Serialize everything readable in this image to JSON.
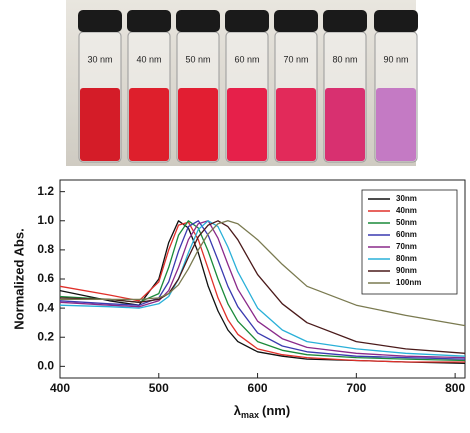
{
  "photo": {
    "labels": [
      "30 nm",
      "40 nm",
      "50 nm",
      "60 nm",
      "70 nm",
      "80 nm",
      "90 nm"
    ]
  },
  "chart_data": {
    "type": "line",
    "y_label": "Normalized Abs.",
    "x_label": {
      "symbol": "λ",
      "subscript": "max",
      "unit": "(nm)"
    },
    "x": [
      400,
      450,
      480,
      500,
      510,
      520,
      530,
      540,
      550,
      560,
      570,
      580,
      600,
      625,
      650,
      700,
      750,
      810
    ],
    "series": [
      {
        "name": "30nm",
        "color": "#111111",
        "values": [
          0.52,
          0.45,
          0.42,
          0.6,
          0.85,
          1.0,
          0.95,
          0.78,
          0.55,
          0.38,
          0.25,
          0.17,
          0.1,
          0.07,
          0.05,
          0.04,
          0.03,
          0.02
        ]
      },
      {
        "name": "40nm",
        "color": "#e0302a",
        "values": [
          0.55,
          0.49,
          0.45,
          0.58,
          0.8,
          0.97,
          0.99,
          0.87,
          0.67,
          0.47,
          0.32,
          0.22,
          0.12,
          0.08,
          0.06,
          0.04,
          0.03,
          0.03
        ]
      },
      {
        "name": "50nm",
        "color": "#1a8a3a",
        "values": [
          0.48,
          0.46,
          0.44,
          0.5,
          0.68,
          0.9,
          1.0,
          0.95,
          0.79,
          0.6,
          0.43,
          0.31,
          0.17,
          0.11,
          0.08,
          0.06,
          0.05,
          0.04
        ]
      },
      {
        "name": "60nm",
        "color": "#3a3ab0",
        "values": [
          0.45,
          0.43,
          0.42,
          0.47,
          0.58,
          0.79,
          0.96,
          1.0,
          0.9,
          0.73,
          0.55,
          0.41,
          0.23,
          0.14,
          0.1,
          0.07,
          0.06,
          0.05
        ]
      },
      {
        "name": "70nm",
        "color": "#8a2a8a",
        "values": [
          0.44,
          0.42,
          0.41,
          0.45,
          0.52,
          0.68,
          0.87,
          0.98,
          1.0,
          0.88,
          0.7,
          0.53,
          0.31,
          0.19,
          0.13,
          0.09,
          0.07,
          0.06
        ]
      },
      {
        "name": "80nm",
        "color": "#2ab0d8",
        "values": [
          0.42,
          0.41,
          0.4,
          0.43,
          0.48,
          0.6,
          0.78,
          0.94,
          1.0,
          0.96,
          0.82,
          0.65,
          0.4,
          0.25,
          0.17,
          0.12,
          0.09,
          0.07
        ]
      },
      {
        "name": "90nm",
        "color": "#4a1a1a",
        "values": [
          0.47,
          0.46,
          0.44,
          0.46,
          0.5,
          0.6,
          0.75,
          0.89,
          0.97,
          1.0,
          0.96,
          0.87,
          0.63,
          0.43,
          0.3,
          0.17,
          0.12,
          0.09
        ]
      },
      {
        "name": "100nm",
        "color": "#7a7a50",
        "values": [
          0.46,
          0.46,
          0.46,
          0.47,
          0.5,
          0.56,
          0.67,
          0.8,
          0.91,
          0.98,
          1.0,
          0.98,
          0.87,
          0.7,
          0.55,
          0.42,
          0.35,
          0.28
        ]
      }
    ],
    "xlim": [
      400,
      810
    ],
    "ylim": [
      -0.08,
      1.28
    ],
    "xticks": [
      400,
      500,
      600,
      700,
      800
    ],
    "yticks": [
      {
        "value": 0,
        "label": "0.0"
      },
      {
        "value": 0.2,
        "label": "0.2"
      },
      {
        "value": 0.4,
        "label": "0.4"
      },
      {
        "value": 0.6,
        "label": "0.6"
      },
      {
        "value": 0.8,
        "label": "0.8"
      },
      {
        "value": 1,
        "label": "1.0"
      },
      {
        "value": 1.2,
        "label": "1.2"
      }
    ],
    "legend": "upper right"
  }
}
